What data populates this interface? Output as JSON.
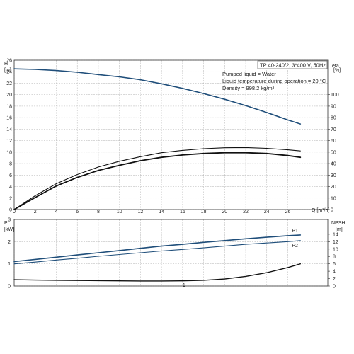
{
  "chart_data": {
    "type": "line",
    "title_box": "TP 40-240/2, 3*400 V, 50Hz",
    "info_lines": [
      "Pumped liquid = Water",
      "Liquid temperature during operation = 20 °C",
      "Density = 998.2 kg/m³"
    ],
    "x_ticks": [
      "0",
      "2",
      "4",
      "6",
      "8",
      "10",
      "12",
      "14",
      "16",
      "18",
      "20",
      "22",
      "24",
      "26"
    ],
    "x_unit": "Q [m³/h]",
    "xlim": [
      0,
      29.8
    ],
    "grid": true,
    "top_panel": {
      "left_axis": {
        "label": "H",
        "unit": "[m]",
        "ylim": [
          0,
          26
        ],
        "ticks": [
          0,
          2,
          4,
          6,
          8,
          10,
          12,
          14,
          16,
          18,
          20,
          22,
          24,
          26
        ]
      },
      "right_axis": {
        "label": "eta",
        "unit": "[%]",
        "ylim": [
          0,
          130
        ],
        "ticks": [
          0,
          10,
          20,
          30,
          40,
          50,
          60,
          70,
          80,
          90,
          100
        ]
      },
      "series": [
        {
          "axis": "left",
          "color": "#1f4e7a",
          "width": 1.6,
          "x": [
            0,
            2,
            4,
            6,
            8,
            10,
            12,
            14,
            16,
            18,
            20,
            22,
            24,
            26,
            27.2
          ],
          "y": [
            24.5,
            24.4,
            24.2,
            23.9,
            23.5,
            23.1,
            22.6,
            21.9,
            21.1,
            20.2,
            19.2,
            18.1,
            16.9,
            15.6,
            14.9
          ]
        },
        {
          "axis": "right",
          "color": "#111111",
          "width": 1.1,
          "x": [
            0,
            2,
            4,
            6,
            8,
            10,
            12,
            14,
            16,
            18,
            20,
            22,
            24,
            26,
            27.2
          ],
          "y": [
            0,
            12,
            22.5,
            30.5,
            37,
            42,
            46,
            49.5,
            51.5,
            53,
            53.8,
            54,
            53.3,
            52,
            51
          ]
        },
        {
          "axis": "right",
          "color": "#111111",
          "width": 1.8,
          "x": [
            0,
            2,
            4,
            6,
            8,
            10,
            12,
            14,
            16,
            18,
            20,
            22,
            24,
            26,
            27.2
          ],
          "y": [
            0,
            10.5,
            20.5,
            28,
            34,
            38.5,
            42.5,
            45.5,
            47.5,
            48.8,
            49.5,
            49.5,
            48.8,
            47,
            45.5
          ]
        }
      ]
    },
    "bottom_panel": {
      "left_axis": {
        "label": "P",
        "unit": "[kW]",
        "ylim": [
          0,
          3
        ],
        "ticks": [
          0,
          1,
          2,
          3
        ]
      },
      "right_axis": {
        "label": "NPSH",
        "unit": "[m]",
        "ylim": [
          0,
          18
        ],
        "ticks": [
          0,
          2,
          4,
          6,
          8,
          10,
          12,
          14
        ]
      },
      "series": [
        {
          "name": "P1",
          "axis": "left",
          "color": "#1f4e7a",
          "width": 1.6,
          "x": [
            0,
            2,
            4,
            6,
            8,
            10,
            12,
            14,
            16,
            18,
            20,
            22,
            24,
            26,
            27.2
          ],
          "y": [
            1.1,
            1.2,
            1.3,
            1.4,
            1.5,
            1.6,
            1.7,
            1.8,
            1.88,
            1.97,
            2.05,
            2.13,
            2.2,
            2.27,
            2.3
          ]
        },
        {
          "name": "P2",
          "axis": "left",
          "color": "#1f4e7a",
          "width": 1.1,
          "x": [
            0,
            2,
            4,
            6,
            8,
            10,
            12,
            14,
            16,
            18,
            20,
            22,
            24,
            26,
            27.2
          ],
          "y": [
            1.0,
            1.08,
            1.17,
            1.25,
            1.34,
            1.42,
            1.5,
            1.58,
            1.65,
            1.72,
            1.8,
            1.88,
            1.94,
            2.0,
            2.05
          ]
        },
        {
          "axis": "right",
          "color": "#111111",
          "width": 1.4,
          "x": [
            0,
            2,
            4,
            6,
            8,
            10,
            12,
            14,
            16,
            18,
            20,
            22,
            24,
            26,
            27.2
          ],
          "y": [
            1.7,
            1.6,
            1.55,
            1.5,
            1.45,
            1.4,
            1.35,
            1.35,
            1.4,
            1.55,
            1.9,
            2.6,
            3.6,
            5.0,
            6.0
          ]
        }
      ],
      "annotations": [
        {
          "text": "P1",
          "near_series": 0
        },
        {
          "text": "P2",
          "near_series": 1
        },
        {
          "text": "1",
          "x": 16
        }
      ]
    }
  }
}
